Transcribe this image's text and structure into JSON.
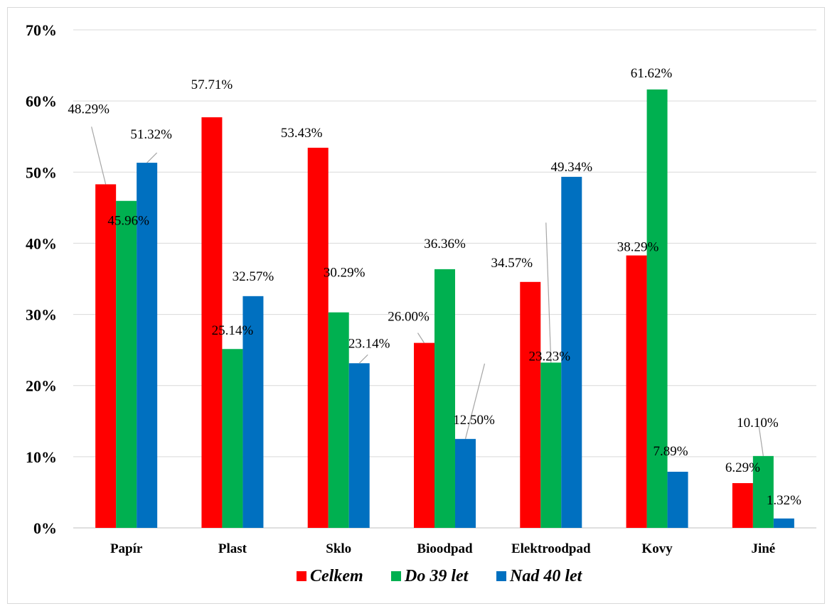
{
  "chart_data": {
    "type": "bar",
    "categories": [
      "Papír",
      "Plast",
      "Sklo",
      "Bioodpad",
      "Elektroodpad",
      "Kovy",
      "Jiné"
    ],
    "series": [
      {
        "name": "Celkem",
        "color": "#ff0000",
        "values": [
          48.29,
          57.71,
          53.43,
          26.0,
          34.57,
          38.29,
          6.29
        ],
        "labels": [
          "48.29%",
          "57.71%",
          "53.43%",
          "26.00%",
          "34.57%",
          "38.29%",
          "6.29%"
        ]
      },
      {
        "name": "Do 39 let",
        "color": "#00b050",
        "values": [
          45.96,
          25.14,
          30.29,
          36.36,
          23.23,
          61.62,
          10.1
        ],
        "labels": [
          "45.96%",
          "25.14%",
          "30.29%",
          "36.36%",
          "23.23%",
          "61.62%",
          "10.10%"
        ]
      },
      {
        "name": "Nad 40 let",
        "color": "#0070c0",
        "values": [
          51.32,
          32.57,
          23.14,
          12.5,
          49.34,
          7.89,
          1.32
        ],
        "labels": [
          "51.32%",
          "32.57%",
          "23.14%",
          "12.50%",
          "49.34%",
          "7.89%",
          "1.32%"
        ]
      }
    ],
    "y_ticks": [
      "0%",
      "10%",
      "20%",
      "30%",
      "40%",
      "50%",
      "60%",
      "70%"
    ],
    "ylim": [
      0,
      70
    ],
    "grid": true,
    "legend": "bottom"
  }
}
